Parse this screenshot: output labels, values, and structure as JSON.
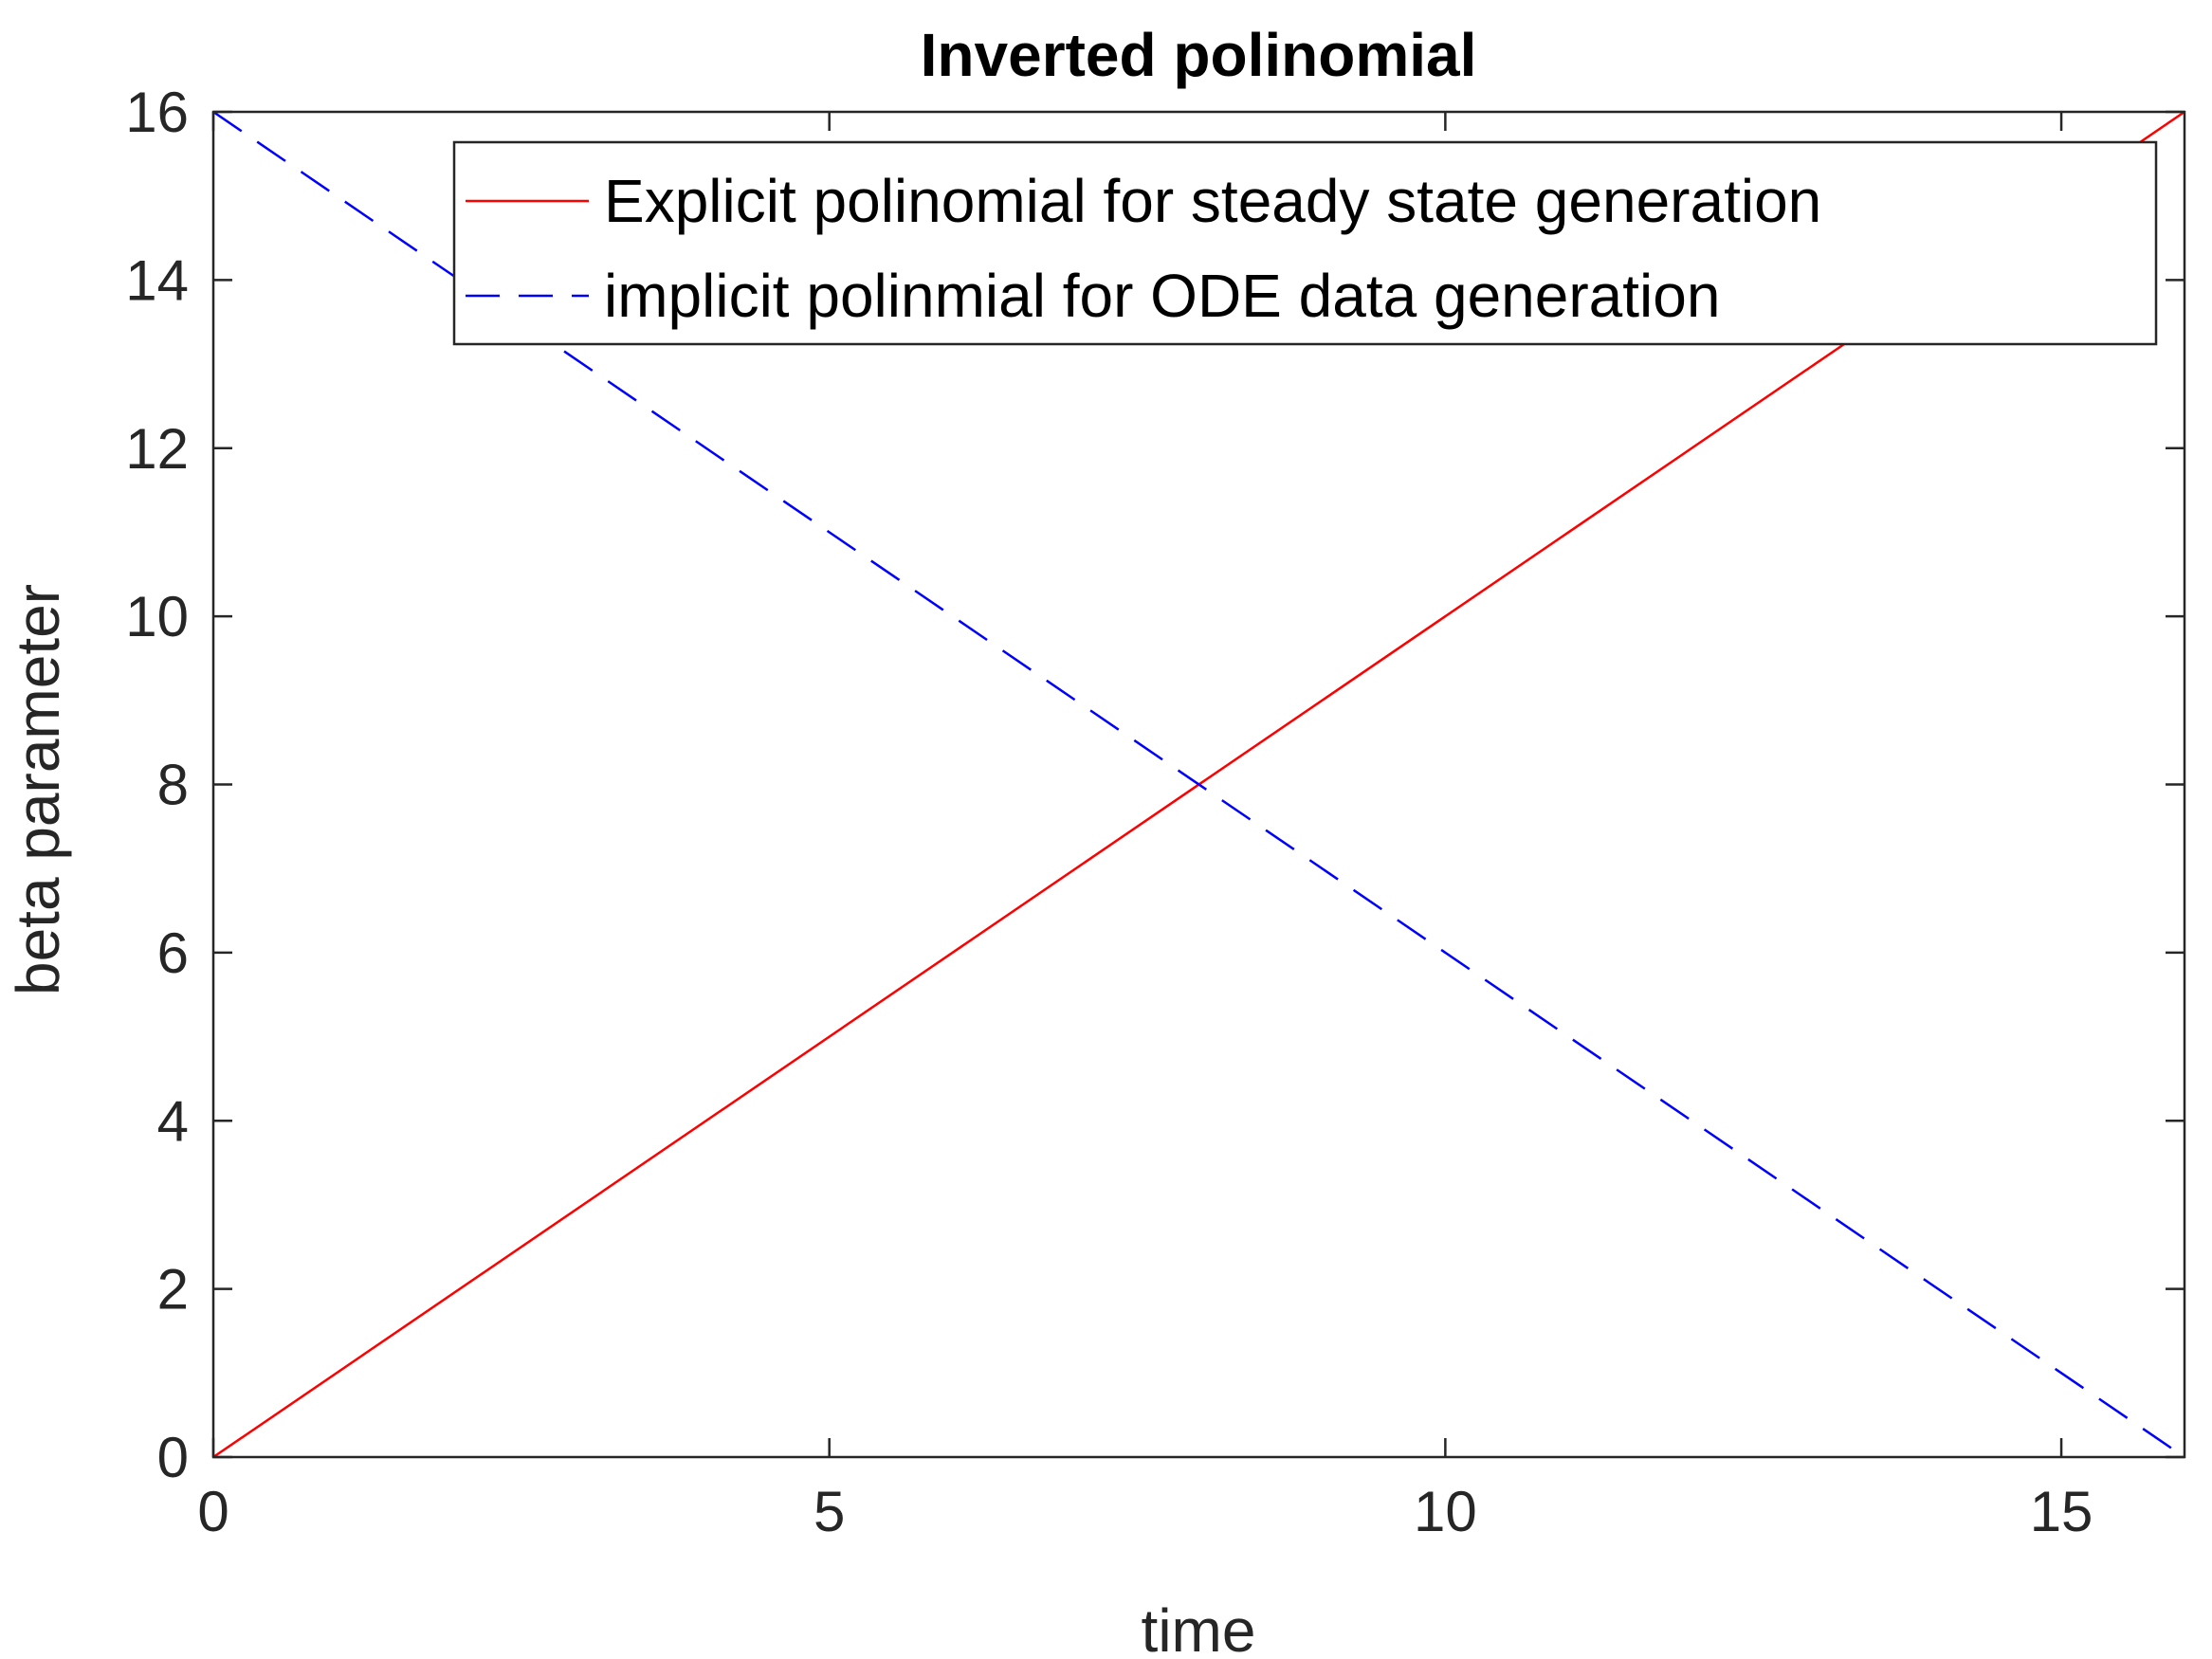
{
  "chart_data": {
    "type": "line",
    "title": "Inverted polinomial",
    "xlabel": "time",
    "ylabel": "beta parameter",
    "xlim": [
      0,
      16
    ],
    "ylim": [
      0,
      16
    ],
    "xticks": [
      0,
      5,
      10,
      15
    ],
    "yticks": [
      0,
      2,
      4,
      6,
      8,
      10,
      12,
      14,
      16
    ],
    "grid": false,
    "legend_position": "top-right",
    "series": [
      {
        "name": "Explicit polinomial for steady state generation",
        "color": "#ff0000",
        "line_style": "solid",
        "x": [
          0,
          16
        ],
        "y": [
          0,
          16
        ]
      },
      {
        "name": "implicit polinmial for ODE data generation",
        "color": "#0000ff",
        "line_style": "dashed",
        "x": [
          0,
          16
        ],
        "y": [
          16,
          0
        ]
      }
    ]
  }
}
